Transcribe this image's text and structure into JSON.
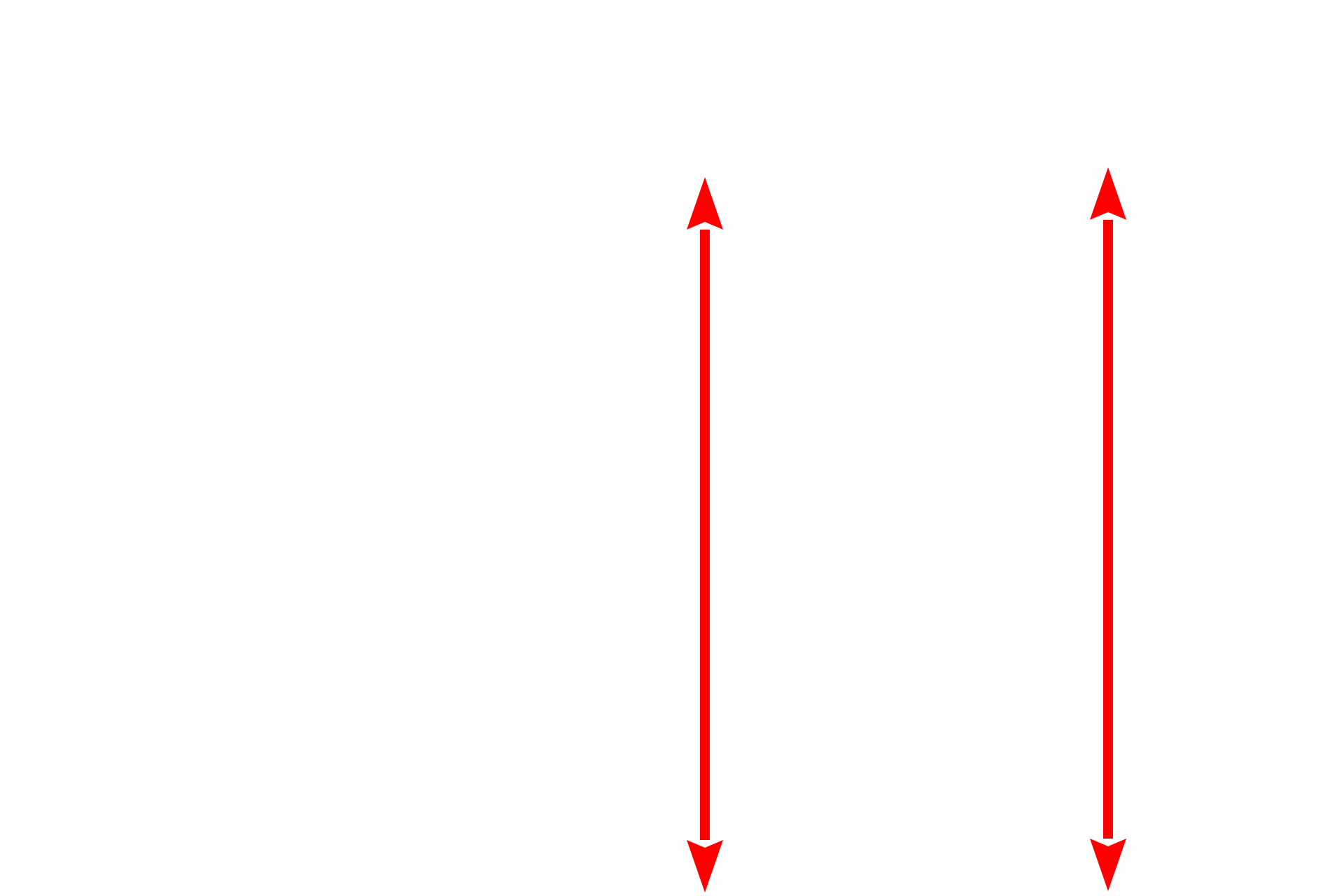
{
  "diagram": {
    "arrow_color": "#ff0000",
    "arrows": [
      {
        "id": "left",
        "type": "double-headed vertical"
      },
      {
        "id": "right",
        "type": "double-headed vertical"
      }
    ]
  }
}
